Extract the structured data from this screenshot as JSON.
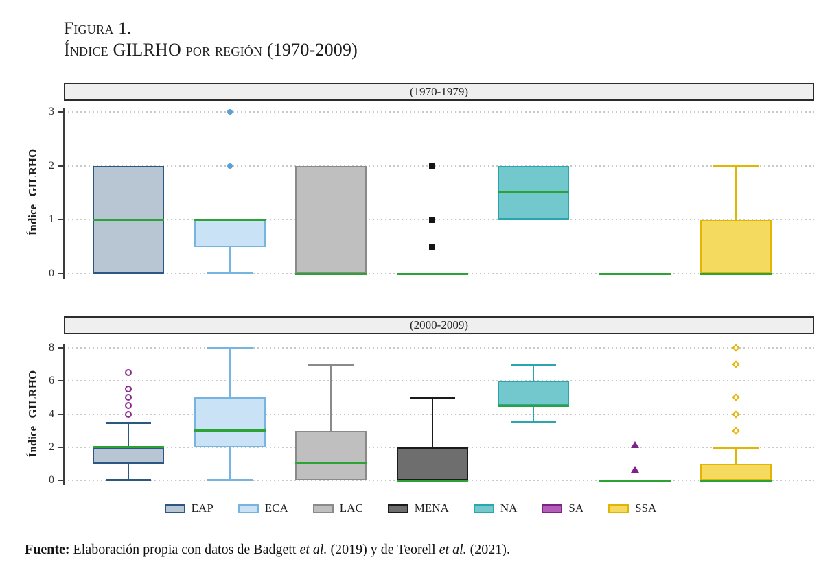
{
  "title": {
    "label": "Figura 1.",
    "text": "Índice GILRHO por región (1970-2009)"
  },
  "legend": {
    "items": [
      {
        "label": "EAP",
        "fill": "#b8c6d4",
        "edge": "#2a5783"
      },
      {
        "label": "ECA",
        "fill": "#c9e2f6",
        "edge": "#76b4e2"
      },
      {
        "label": "LAC",
        "fill": "#bfbfbf",
        "edge": "#8a8a8a"
      },
      {
        "label": "MENA",
        "fill": "#6e6e6e",
        "edge": "#1b1b1b"
      },
      {
        "label": "NA",
        "fill": "#72c8cc",
        "edge": "#29a7ad"
      },
      {
        "label": "SA",
        "fill": "#b45cba",
        "edge": "#7c2386"
      },
      {
        "label": "SSA",
        "fill": "#f4da5f",
        "edge": "#e2b503"
      }
    ]
  },
  "median_color": "#2ea335",
  "chart_data": [
    {
      "type": "box",
      "title": "(1970-1979)",
      "ylabel": "Índice GILRHO",
      "ylim": [
        0,
        3
      ],
      "yticks": [
        0,
        1,
        2,
        3
      ],
      "grid": "dotted-horizontal",
      "categories": [
        "EAP",
        "ECA",
        "LAC",
        "MENA",
        "NA",
        "SA",
        "SSA"
      ],
      "series": [
        {
          "name": "EAP",
          "q1": 0,
          "median": 1,
          "q3": 2,
          "whisker_low": 0,
          "whisker_high": 2,
          "outliers": []
        },
        {
          "name": "ECA",
          "q1": 0.5,
          "median": 1,
          "q3": 1,
          "whisker_low": 0,
          "whisker_high": 1,
          "outliers": [
            2,
            3
          ],
          "marker": "circle",
          "marker_color": "#5b9fd4"
        },
        {
          "name": "LAC",
          "q1": 0,
          "median": 0,
          "q3": 2,
          "whisker_low": 0,
          "whisker_high": 2,
          "outliers": []
        },
        {
          "name": "MENA",
          "q1": 0,
          "median": 0,
          "q3": 0,
          "whisker_low": 0,
          "whisker_high": 0,
          "outliers": [
            0.5,
            1,
            2
          ],
          "marker": "square",
          "marker_color": "#141414"
        },
        {
          "name": "NA",
          "q1": 1,
          "median": 1.5,
          "q3": 2,
          "whisker_low": 1,
          "whisker_high": 2,
          "outliers": []
        },
        {
          "name": "SA",
          "q1": 0,
          "median": 0,
          "q3": 0,
          "whisker_low": 0,
          "whisker_high": 0,
          "outliers": []
        },
        {
          "name": "SSA",
          "q1": 0,
          "median": 0,
          "q3": 1,
          "whisker_low": 0,
          "whisker_high": 2,
          "outliers": []
        }
      ]
    },
    {
      "type": "box",
      "title": "(2000-2009)",
      "ylabel": "Índice GILRHO",
      "ylim": [
        0,
        8
      ],
      "yticks": [
        0,
        2,
        4,
        6,
        8
      ],
      "grid": "dotted-horizontal",
      "categories": [
        "EAP",
        "ECA",
        "LAC",
        "MENA",
        "NA",
        "SA",
        "SSA"
      ],
      "series": [
        {
          "name": "EAP",
          "q1": 1,
          "median": 2,
          "q3": 2,
          "whisker_low": 0,
          "whisker_high": 3.5,
          "outliers": [
            4,
            4.5,
            5,
            5.5,
            6.5
          ],
          "marker": "circle-open",
          "marker_color": "#8a2b8f"
        },
        {
          "name": "ECA",
          "q1": 2,
          "median": 3,
          "q3": 5,
          "whisker_low": 0,
          "whisker_high": 8,
          "outliers": []
        },
        {
          "name": "LAC",
          "q1": 0,
          "median": 1,
          "q3": 3,
          "whisker_low": 0,
          "whisker_high": 7,
          "outliers": []
        },
        {
          "name": "MENA",
          "q1": 0,
          "median": 0,
          "q3": 2,
          "whisker_low": 0,
          "whisker_high": 5,
          "outliers": []
        },
        {
          "name": "NA",
          "q1": 4.5,
          "median": 4.5,
          "q3": 6,
          "whisker_low": 3.5,
          "whisker_high": 7,
          "outliers": []
        },
        {
          "name": "SA",
          "q1": 0,
          "median": 0,
          "q3": 0,
          "whisker_low": 0,
          "whisker_high": 0,
          "outliers": [
            0.5,
            2
          ],
          "marker": "triangle",
          "marker_color": "#7c2386"
        },
        {
          "name": "SSA",
          "q1": 0,
          "median": 0,
          "q3": 1,
          "whisker_low": 0,
          "whisker_high": 2,
          "outliers": [
            3,
            4,
            5,
            7,
            8
          ],
          "marker": "diamond-open",
          "marker_color": "#e2b503"
        }
      ]
    }
  ],
  "footer": {
    "parts": [
      {
        "text": "Fuente:",
        "bold": true
      },
      {
        "text": " Elaboración propia con datos de Badgett "
      },
      {
        "text": "et al.",
        "italic": true
      },
      {
        "text": " (2019) y de Teorell "
      },
      {
        "text": "et al.",
        "italic": true
      },
      {
        "text": " (2021)."
      }
    ]
  }
}
